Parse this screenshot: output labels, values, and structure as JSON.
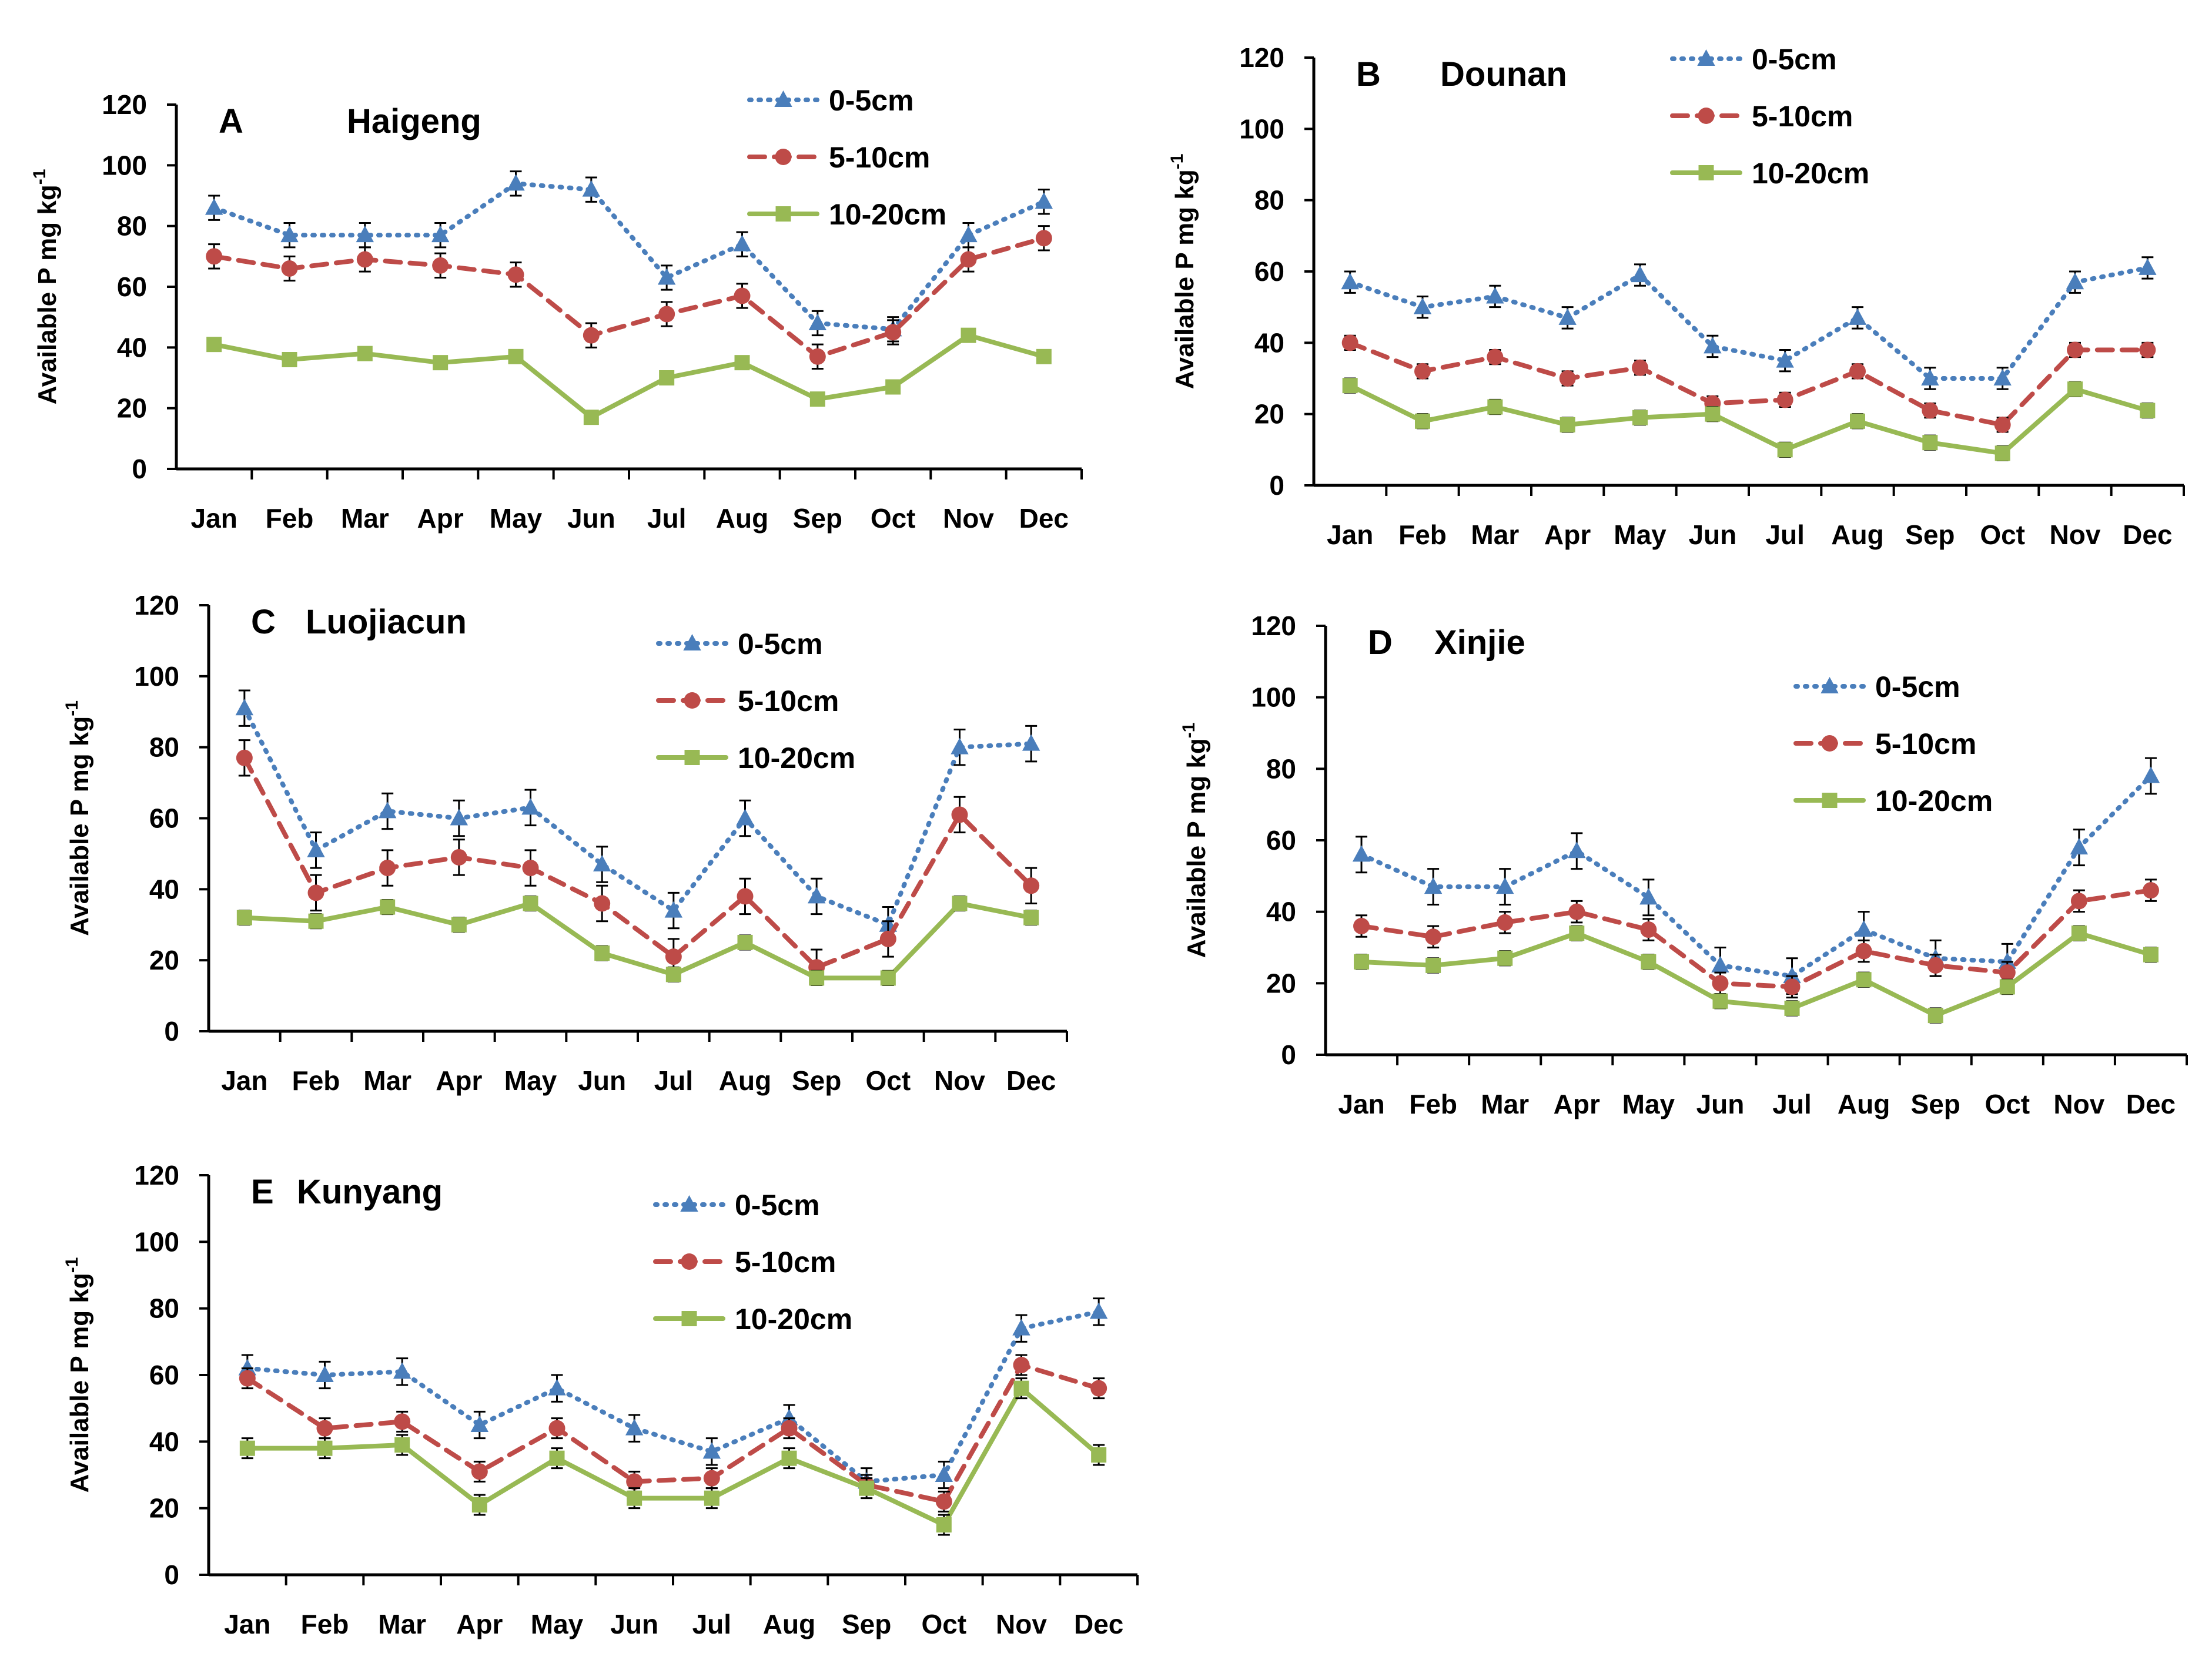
{
  "figure": {
    "series_styles": [
      {
        "name": "0-5cm",
        "color": "#4a7ebb",
        "marker": "triangle",
        "dash": "dotted"
      },
      {
        "name": "5-10cm",
        "color": "#be4b48",
        "marker": "circle",
        "dash": "dashed"
      },
      {
        "name": "10-20cm",
        "color": "#98b954",
        "marker": "square",
        "dash": "solid"
      }
    ]
  },
  "chart_data": [
    {
      "type": "line",
      "letter": "A",
      "title": "Haigeng",
      "xlabel": "",
      "ylabel": "Available P  mg kg",
      "ylabel_sup": "-1",
      "ylim": [
        0,
        120
      ],
      "yticks": [
        "0",
        "20",
        "40",
        "60",
        "80",
        "100",
        "120"
      ],
      "categories": [
        "Jan",
        "Feb",
        "Mar",
        "Apr",
        "May",
        "Jun",
        "Jul",
        "Aug",
        "Sep",
        "Oct",
        "Nov",
        "Dec"
      ],
      "series": [
        {
          "name": "0-5cm",
          "values": [
            86,
            77,
            77,
            77,
            94,
            92,
            63,
            74,
            48,
            46,
            77,
            88
          ],
          "errors": [
            4,
            4,
            4,
            4,
            4,
            4,
            4,
            4,
            4,
            4,
            4,
            4
          ]
        },
        {
          "name": "5-10cm",
          "values": [
            70,
            66,
            69,
            67,
            64,
            44,
            51,
            57,
            37,
            45,
            69,
            76
          ],
          "errors": [
            4,
            4,
            4,
            4,
            4,
            4,
            4,
            4,
            4,
            4,
            4,
            4
          ]
        },
        {
          "name": "10-20cm",
          "values": [
            41,
            36,
            38,
            35,
            37,
            17,
            30,
            35,
            23,
            27,
            44,
            37
          ],
          "errors": [
            2,
            2,
            2,
            2,
            2,
            2,
            2,
            2,
            2,
            2,
            2,
            2
          ]
        }
      ]
    },
    {
      "type": "line",
      "letter": "B",
      "title": "Dounan",
      "xlabel": "",
      "ylabel": "Available P  mg kg",
      "ylabel_sup": "-1",
      "ylim": [
        0,
        120
      ],
      "yticks": [
        "0",
        "20",
        "40",
        "60",
        "80",
        "100",
        "120"
      ],
      "categories": [
        "Jan",
        "Feb",
        "Mar",
        "Apr",
        "May",
        "Jun",
        "Jul",
        "Aug",
        "Sep",
        "Oct",
        "Nov",
        "Dec"
      ],
      "series": [
        {
          "name": "0-5cm",
          "values": [
            57,
            50,
            53,
            47,
            59,
            39,
            35,
            47,
            30,
            30,
            57,
            61
          ],
          "errors": [
            3,
            3,
            3,
            3,
            3,
            3,
            3,
            3,
            3,
            3,
            3,
            3
          ]
        },
        {
          "name": "5-10cm",
          "values": [
            40,
            32,
            36,
            30,
            33,
            23,
            24,
            32,
            21,
            17,
            38,
            38
          ],
          "errors": [
            2,
            2,
            2,
            2,
            2,
            2,
            2,
            2,
            2,
            2,
            2,
            2
          ]
        },
        {
          "name": "10-20cm",
          "values": [
            28,
            18,
            22,
            17,
            19,
            20,
            10,
            18,
            12,
            9,
            27,
            21
          ],
          "errors": [
            2,
            2,
            2,
            2,
            2,
            2,
            2,
            2,
            2,
            2,
            2,
            2
          ]
        }
      ]
    },
    {
      "type": "line",
      "letter": "C",
      "title": "Luojiacun",
      "xlabel": "",
      "ylabel": "Available P  mg kg",
      "ylabel_sup": "-1",
      "ylim": [
        0,
        120
      ],
      "yticks": [
        "0",
        "20",
        "40",
        "60",
        "80",
        "100",
        "120"
      ],
      "categories": [
        "Jan",
        "Feb",
        "Mar",
        "Apr",
        "May",
        "Jun",
        "Jul",
        "Aug",
        "Sep",
        "Oct",
        "Nov",
        "Dec"
      ],
      "series": [
        {
          "name": "0-5cm",
          "values": [
            91,
            51,
            62,
            60,
            63,
            47,
            34,
            60,
            38,
            30,
            80,
            81
          ],
          "errors": [
            5,
            5,
            5,
            5,
            5,
            5,
            5,
            5,
            5,
            5,
            5,
            5
          ]
        },
        {
          "name": "5-10cm",
          "values": [
            77,
            39,
            46,
            49,
            46,
            36,
            21,
            38,
            18,
            26,
            61,
            41
          ],
          "errors": [
            5,
            5,
            5,
            5,
            5,
            5,
            5,
            5,
            5,
            5,
            5,
            5
          ]
        },
        {
          "name": "10-20cm",
          "values": [
            32,
            31,
            35,
            30,
            36,
            22,
            16,
            25,
            15,
            15,
            36,
            32
          ],
          "errors": [
            2,
            2,
            2,
            2,
            2,
            2,
            2,
            2,
            2,
            2,
            2,
            2
          ]
        }
      ]
    },
    {
      "type": "line",
      "letter": "D",
      "title": "Xinjie",
      "xlabel": "",
      "ylabel": "Available P  mg kg",
      "ylabel_sup": "-1",
      "ylim": [
        0,
        120
      ],
      "yticks": [
        "0",
        "20",
        "40",
        "60",
        "80",
        "100",
        "120"
      ],
      "categories": [
        "Jan",
        "Feb",
        "Mar",
        "Apr",
        "May",
        "Jun",
        "Jul",
        "Aug",
        "Sep",
        "Oct",
        "Nov",
        "Dec"
      ],
      "series": [
        {
          "name": "0-5cm",
          "values": [
            56,
            47,
            47,
            57,
            44,
            25,
            22,
            35,
            27,
            26,
            58,
            78
          ],
          "errors": [
            5,
            5,
            5,
            5,
            5,
            5,
            5,
            5,
            5,
            5,
            5,
            5
          ]
        },
        {
          "name": "5-10cm",
          "values": [
            36,
            33,
            37,
            40,
            35,
            20,
            19,
            29,
            25,
            23,
            43,
            46
          ],
          "errors": [
            3,
            3,
            3,
            3,
            3,
            3,
            3,
            3,
            3,
            3,
            3,
            3
          ]
        },
        {
          "name": "10-20cm",
          "values": [
            26,
            25,
            27,
            34,
            26,
            15,
            13,
            21,
            11,
            19,
            34,
            28
          ],
          "errors": [
            2,
            2,
            2,
            2,
            2,
            2,
            2,
            2,
            2,
            2,
            2,
            2
          ]
        }
      ]
    },
    {
      "type": "line",
      "letter": "E",
      "title": "Kunyang",
      "xlabel": "",
      "ylabel": "Available P  mg kg",
      "ylabel_sup": "-1",
      "ylim": [
        0,
        120
      ],
      "yticks": [
        "0",
        "20",
        "40",
        "60",
        "80",
        "100",
        "120"
      ],
      "categories": [
        "Jan",
        "Feb",
        "Mar",
        "Apr",
        "May",
        "Jun",
        "Jul",
        "Aug",
        "Sep",
        "Oct",
        "Nov",
        "Dec"
      ],
      "series": [
        {
          "name": "0-5cm",
          "values": [
            62,
            60,
            61,
            45,
            56,
            44,
            37,
            47,
            28,
            30,
            74,
            79
          ],
          "errors": [
            4,
            4,
            4,
            4,
            4,
            4,
            4,
            4,
            4,
            4,
            4,
            4
          ]
        },
        {
          "name": "5-10cm",
          "values": [
            59,
            44,
            46,
            31,
            44,
            28,
            29,
            44,
            27,
            22,
            63,
            56
          ],
          "errors": [
            3,
            3,
            3,
            3,
            3,
            3,
            3,
            3,
            3,
            3,
            3,
            3
          ]
        },
        {
          "name": "10-20cm",
          "values": [
            38,
            38,
            39,
            21,
            35,
            23,
            23,
            35,
            26,
            15,
            56,
            36
          ],
          "errors": [
            3,
            3,
            3,
            3,
            3,
            3,
            3,
            3,
            3,
            3,
            3,
            3
          ]
        }
      ]
    }
  ]
}
